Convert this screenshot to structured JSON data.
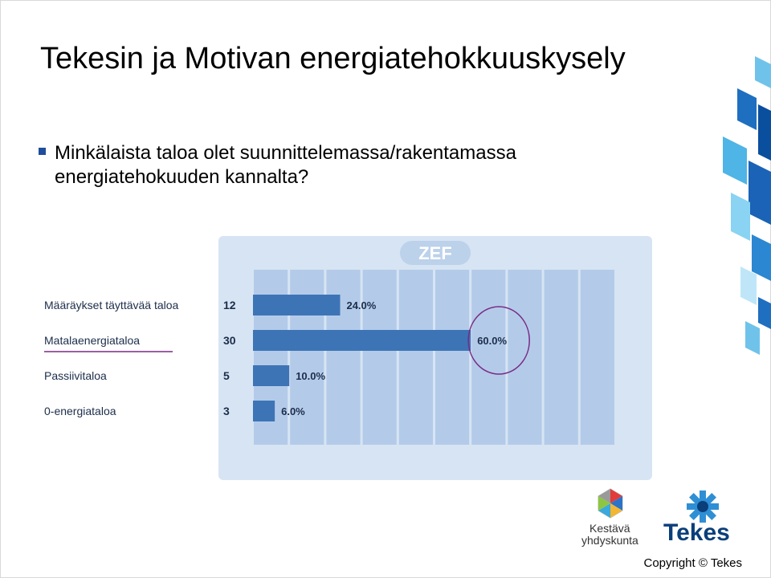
{
  "slide": {
    "title": "Tekesin ja Motivan energiatehokkuuskysely",
    "question": "Minkälaista taloa olet suunnittelemassa/rakentamassa energiatehokuuden kannalta?",
    "copyright": "Copyright © Tekes"
  },
  "logos": {
    "kestava_line1": "Kestävä",
    "kestava_line2": "yhdyskunta",
    "tekes": "Tekes"
  },
  "chart_data": {
    "type": "bar",
    "orientation": "horizontal",
    "header": "ZEF",
    "categories": [
      "Määräykset täyttävää taloa",
      "Matalaenergiataloa",
      "Passiivitaloa",
      "0-energiataloa"
    ],
    "counts": [
      "12",
      "30",
      "5",
      "3"
    ],
    "values": [
      24.0,
      60.0,
      10.0,
      6.0
    ],
    "value_labels": [
      "24.0%",
      "60.0%",
      "10.0%",
      "6.0%"
    ],
    "xlim": [
      0,
      100
    ],
    "grid": true,
    "highlight_category": "Matalaenergiataloa",
    "colors": {
      "bar": "#3d74b6",
      "panel": "#d7e4f3",
      "grid_column": "#a7c3e5",
      "highlight": "#7a2a86"
    }
  }
}
